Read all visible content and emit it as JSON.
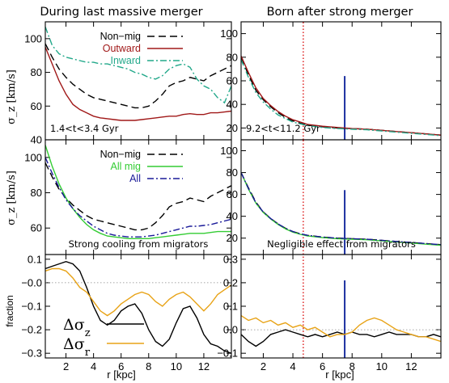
{
  "figure": {
    "title_left": "During last massive merger",
    "title_right": "Born after strong merger",
    "xlabel": "r [kpc]",
    "ylabel_sigma": "σ_z [km/s]",
    "ylabel_fraction": "fraction",
    "colors": {
      "black": "#000000",
      "red": "#a01818",
      "green_dashdot": "#22a88a",
      "green": "#33cc33",
      "blue": "#1a1a99",
      "orange": "#e8a317",
      "dotted_red": "#e03030",
      "solid_blue": "#1c2fa0"
    }
  },
  "chart_data": [
    {
      "id": "top-left",
      "type": "line",
      "annotation": "1.4<t<3.4 Gyr",
      "xlim": [
        0.5,
        14
      ],
      "ylim": [
        40,
        110
      ],
      "xticks": [],
      "yticks": [
        40,
        60,
        80,
        100
      ],
      "legend": "top-center",
      "series": [
        {
          "name": "Non−mig",
          "style": "dashed",
          "color": "#000000",
          "x": [
            0.5,
            1,
            1.5,
            2,
            2.5,
            3,
            3.5,
            4,
            4.5,
            5,
            5.5,
            6,
            6.5,
            7,
            7.5,
            8,
            8.5,
            9,
            9.5,
            10,
            10.5,
            11,
            11.5,
            12,
            12.5,
            13,
            13.5,
            14
          ],
          "y": [
            97,
            89,
            82,
            77,
            73,
            70,
            67,
            65,
            64,
            63,
            62,
            61,
            60,
            59,
            59,
            60,
            63,
            67,
            72,
            74,
            75,
            77,
            76,
            75,
            78,
            80,
            82,
            84
          ]
        },
        {
          "name": "Outward",
          "style": "solid",
          "color": "#a01818",
          "x": [
            0.5,
            1,
            1.5,
            2,
            2.5,
            3,
            3.5,
            4,
            4.5,
            5,
            5.5,
            6,
            6.5,
            7,
            7.5,
            8,
            8.5,
            9,
            9.5,
            10,
            10.5,
            11,
            11.5,
            12,
            12.5,
            13,
            13.5,
            14
          ],
          "y": [
            95,
            85,
            75,
            67,
            61,
            58,
            56,
            54,
            53,
            52.5,
            52,
            51.5,
            51.5,
            51.5,
            52,
            52.5,
            53,
            53.5,
            54,
            54,
            55,
            55.5,
            55,
            55,
            56,
            56,
            56.5,
            57
          ]
        },
        {
          "name": "Inward",
          "style": "dashdot",
          "color": "#22a88a",
          "x": [
            0.5,
            1,
            1.5,
            2,
            2.5,
            3,
            3.5,
            4,
            4.5,
            5,
            5.5,
            6,
            6.5,
            7,
            7.5,
            8,
            8.5,
            9,
            9.5,
            10,
            10.5,
            11,
            11.5,
            12,
            12.5,
            13,
            13.5,
            14
          ],
          "y": [
            107,
            96,
            91,
            89,
            88,
            87,
            86,
            86,
            85,
            85,
            84,
            83,
            82,
            80,
            79,
            77,
            76,
            78,
            82,
            84,
            85,
            83,
            76,
            72,
            70,
            65,
            62,
            72
          ]
        }
      ]
    },
    {
      "id": "top-right",
      "type": "line",
      "annotation": "9.2<t<11.2 Gyr",
      "xlim": [
        0.5,
        14
      ],
      "ylim": [
        10,
        110
      ],
      "xticks": [],
      "yticks": [
        20,
        40,
        60,
        80,
        100
      ],
      "vlines": [
        {
          "x": 4.7,
          "style": "dotted",
          "color": "#e03030"
        },
        {
          "x": 7.5,
          "style": "solid",
          "color": "#1c2fa0",
          "ymax": 64
        }
      ],
      "series": [
        {
          "name": "",
          "style": "dashed",
          "color": "#000000",
          "x": [
            0.5,
            1,
            1.5,
            2,
            2.5,
            3,
            3.5,
            4,
            4.5,
            5,
            6,
            7,
            8,
            9,
            10,
            11,
            12,
            13,
            14
          ],
          "y": [
            80,
            65,
            52,
            44,
            38,
            33,
            29,
            26,
            24,
            22.5,
            21,
            20,
            19.5,
            19,
            18,
            17,
            16,
            15,
            14
          ]
        },
        {
          "name": "",
          "style": "solid",
          "color": "#a01818",
          "x": [
            0.5,
            1,
            1.5,
            2,
            2.5,
            3,
            3.5,
            4,
            4.5,
            5,
            6,
            7,
            8,
            9,
            10,
            11,
            12,
            13,
            14
          ],
          "y": [
            81,
            67,
            54,
            45,
            39,
            34,
            30,
            27,
            25,
            23,
            21.5,
            20.5,
            19.5,
            19,
            18,
            17,
            16,
            15,
            14
          ]
        },
        {
          "name": "",
          "style": "dashdot",
          "color": "#22a88a",
          "x": [
            0.5,
            1,
            1.5,
            2,
            2.5,
            3,
            3.5,
            4,
            4.5,
            5,
            6,
            7,
            8,
            9,
            10,
            11,
            12,
            13,
            14
          ],
          "y": [
            78,
            63,
            50,
            42,
            36,
            31,
            28,
            25,
            23.5,
            22,
            20.5,
            19.5,
            19,
            18.5,
            17.5,
            16.5,
            15.5,
            14.5,
            13.5
          ]
        }
      ]
    },
    {
      "id": "mid-left",
      "type": "line",
      "annotation": "Strong cooling from migrators",
      "xlim": [
        0.5,
        14
      ],
      "ylim": [
        45,
        110
      ],
      "xticks": [],
      "yticks": [
        60,
        80,
        100
      ],
      "legend": "top-center",
      "series": [
        {
          "name": "Non−mig",
          "style": "dashed",
          "color": "#000000",
          "x": [
            0.5,
            1,
            1.5,
            2,
            2.5,
            3,
            3.5,
            4,
            4.5,
            5,
            5.5,
            6,
            6.5,
            7,
            7.5,
            8,
            8.5,
            9,
            9.5,
            10,
            10.5,
            11,
            11.5,
            12,
            12.5,
            13,
            13.5,
            14
          ],
          "y": [
            97,
            89,
            82,
            77,
            73,
            70,
            67,
            65,
            64,
            63,
            62,
            61,
            60,
            59,
            59,
            60,
            63,
            67,
            72,
            74,
            75,
            77,
            76,
            75,
            78,
            80,
            82,
            84
          ]
        },
        {
          "name": "All  mig",
          "style": "solid",
          "color": "#33cc33",
          "x": [
            0.5,
            1,
            1.5,
            2,
            2.5,
            3,
            3.5,
            4,
            4.5,
            5,
            5.5,
            6,
            6.5,
            7,
            7.5,
            8,
            8.5,
            9,
            9.5,
            10,
            10.5,
            11,
            11.5,
            12,
            12.5,
            13,
            13.5,
            14
          ],
          "y": [
            107,
            95,
            85,
            77,
            71,
            66,
            62,
            59,
            57,
            55.5,
            55,
            54.5,
            54,
            54,
            54,
            54,
            54.5,
            55,
            55.5,
            56,
            56.5,
            57,
            57,
            57,
            57.5,
            58,
            58,
            58
          ]
        },
        {
          "name": "All",
          "style": "dashdot",
          "color": "#1a1a99",
          "x": [
            0.5,
            1,
            1.5,
            2,
            2.5,
            3,
            3.5,
            4,
            4.5,
            5,
            5.5,
            6,
            6.5,
            7,
            7.5,
            8,
            8.5,
            9,
            9.5,
            10,
            10.5,
            11,
            11.5,
            12,
            12.5,
            13,
            13.5,
            14
          ],
          "y": [
            100,
            91,
            83,
            76,
            71,
            67,
            64,
            61,
            59,
            57,
            56,
            55.5,
            55,
            55,
            55,
            55.5,
            56,
            57,
            58,
            59,
            60,
            61,
            61,
            61.5,
            62,
            63,
            64,
            65
          ]
        }
      ]
    },
    {
      "id": "mid-right",
      "type": "line",
      "annotation": "Negligible effect from migrators",
      "xlim": [
        0.5,
        14
      ],
      "ylim": [
        5,
        110
      ],
      "xticks": [],
      "yticks": [
        20,
        40,
        60,
        80,
        100
      ],
      "vlines": [
        {
          "x": 4.7,
          "style": "dotted",
          "color": "#e03030"
        },
        {
          "x": 7.5,
          "style": "solid",
          "color": "#1c2fa0",
          "ymax": 64
        }
      ],
      "series": [
        {
          "name": "",
          "style": "dashed",
          "color": "#000000",
          "x": [
            0.5,
            1,
            1.5,
            2,
            2.5,
            3,
            3.5,
            4,
            4.5,
            5,
            6,
            7,
            8,
            9,
            10,
            11,
            12,
            13,
            14
          ],
          "y": [
            80,
            66,
            53,
            44,
            38,
            33,
            29,
            26,
            24,
            22.5,
            21,
            20,
            19.5,
            19,
            18,
            17,
            16,
            15,
            14
          ]
        },
        {
          "name": "",
          "style": "solid",
          "color": "#33cc33",
          "x": [
            0.5,
            1,
            1.5,
            2,
            2.5,
            3,
            3.5,
            4,
            4.5,
            5,
            6,
            7,
            8,
            9,
            10,
            11,
            12,
            13,
            14
          ],
          "y": [
            80,
            65,
            52,
            43.5,
            37.5,
            32.5,
            28.5,
            25.5,
            23.5,
            22,
            20.5,
            19.5,
            19,
            18.5,
            17.5,
            16.5,
            15.5,
            14.5,
            13.5
          ]
        },
        {
          "name": "",
          "style": "dashdot",
          "color": "#1a1a99",
          "x": [
            0.5,
            1,
            1.5,
            2,
            2.5,
            3,
            3.5,
            4,
            4.5,
            5,
            6,
            7,
            8,
            9,
            10,
            11,
            12,
            13,
            14
          ],
          "y": [
            80,
            65.5,
            52.5,
            44,
            38,
            33,
            29,
            26,
            24,
            22.5,
            21,
            20,
            19.5,
            19,
            18,
            17,
            16,
            15,
            14
          ]
        }
      ]
    },
    {
      "id": "bottom-left",
      "type": "line",
      "xlim": [
        0.5,
        14
      ],
      "ylim": [
        -0.32,
        0.12
      ],
      "xticks": [
        2,
        4,
        6,
        8,
        10,
        12
      ],
      "yticks": [
        0.1,
        0.0,
        -0.1,
        -0.2,
        -0.3
      ],
      "yticklabels": [
        "0.1",
        "−0.0",
        "−0.1",
        "−0.2",
        "−0.3"
      ],
      "hline": 0,
      "legend": "bottom-left",
      "series": [
        {
          "name": "Δσ_z",
          "style": "solid",
          "color": "#000000",
          "x": [
            0.5,
            1,
            1.5,
            2,
            2.5,
            3,
            3.5,
            4,
            4.5,
            5,
            5.5,
            6,
            6.5,
            7,
            7.5,
            8,
            8.5,
            9,
            9.5,
            10,
            10.5,
            11,
            11.5,
            12,
            12.5,
            13,
            13.5,
            14
          ],
          "y": [
            0.06,
            0.07,
            0.08,
            0.09,
            0.08,
            0.05,
            -0.02,
            -0.1,
            -0.16,
            -0.18,
            -0.16,
            -0.12,
            -0.1,
            -0.09,
            -0.13,
            -0.2,
            -0.25,
            -0.27,
            -0.24,
            -0.17,
            -0.11,
            -0.1,
            -0.15,
            -0.22,
            -0.26,
            -0.27,
            -0.29,
            -0.3
          ]
        },
        {
          "name": "Δσ_r",
          "style": "solid",
          "color": "#e8a317",
          "x": [
            0.5,
            1,
            1.5,
            2,
            2.5,
            3,
            3.5,
            4,
            4.5,
            5,
            5.5,
            6,
            6.5,
            7,
            7.5,
            8,
            8.5,
            9,
            9.5,
            10,
            10.5,
            11,
            11.5,
            12,
            12.5,
            13,
            13.5,
            14
          ],
          "y": [
            0.05,
            0.06,
            0.06,
            0.05,
            0.02,
            -0.02,
            -0.04,
            -0.08,
            -0.12,
            -0.14,
            -0.12,
            -0.09,
            -0.07,
            -0.05,
            -0.04,
            -0.05,
            -0.08,
            -0.1,
            -0.07,
            -0.05,
            -0.04,
            -0.06,
            -0.09,
            -0.12,
            -0.09,
            -0.05,
            -0.03,
            -0.01
          ]
        }
      ]
    },
    {
      "id": "bottom-right",
      "type": "line",
      "xlim": [
        0.5,
        14
      ],
      "ylim": [
        -0.12,
        0.32
      ],
      "xticks": [
        2,
        4,
        6,
        8,
        10,
        12
      ],
      "yticks": [
        0.3,
        0.2,
        0.1,
        0.0,
        -0.1
      ],
      "yticklabels": [
        "0.3",
        "0.2",
        "0.1",
        "0.0",
        "−0.1"
      ],
      "hline": 0,
      "vlines": [
        {
          "x": 4.7,
          "style": "dotted",
          "color": "#e03030"
        },
        {
          "x": 7.5,
          "style": "solid",
          "color": "#1c2fa0",
          "ymax": 0.21
        }
      ],
      "series": [
        {
          "name": "",
          "style": "solid",
          "color": "#000000",
          "x": [
            0.5,
            1,
            1.5,
            2,
            2.5,
            3,
            3.5,
            4,
            4.5,
            5,
            5.5,
            6,
            6.5,
            7,
            7.5,
            8,
            8.5,
            9,
            9.5,
            10,
            10.5,
            11,
            11.5,
            12,
            12.5,
            13,
            13.5,
            14
          ],
          "y": [
            -0.02,
            -0.05,
            -0.07,
            -0.05,
            -0.02,
            -0.01,
            0.0,
            -0.01,
            -0.02,
            -0.03,
            -0.02,
            -0.03,
            -0.02,
            -0.01,
            -0.02,
            -0.01,
            -0.02,
            -0.02,
            -0.03,
            -0.02,
            -0.01,
            -0.02,
            -0.02,
            -0.02,
            -0.03,
            -0.03,
            -0.02,
            -0.03
          ]
        },
        {
          "name": "",
          "style": "solid",
          "color": "#e8a317",
          "x": [
            0.5,
            1,
            1.5,
            2,
            2.5,
            3,
            3.5,
            4,
            4.5,
            5,
            5.5,
            6,
            6.5,
            7,
            7.5,
            8,
            8.5,
            9,
            9.5,
            10,
            10.5,
            11,
            11.5,
            12,
            12.5,
            13,
            13.5,
            14
          ],
          "y": [
            0.06,
            0.04,
            0.05,
            0.03,
            0.04,
            0.02,
            0.03,
            0.01,
            0.02,
            0.0,
            0.01,
            -0.01,
            -0.03,
            -0.02,
            -0.02,
            -0.01,
            0.02,
            0.04,
            0.05,
            0.04,
            0.02,
            0.0,
            -0.01,
            -0.02,
            -0.03,
            -0.03,
            -0.04,
            -0.05
          ]
        }
      ]
    }
  ]
}
